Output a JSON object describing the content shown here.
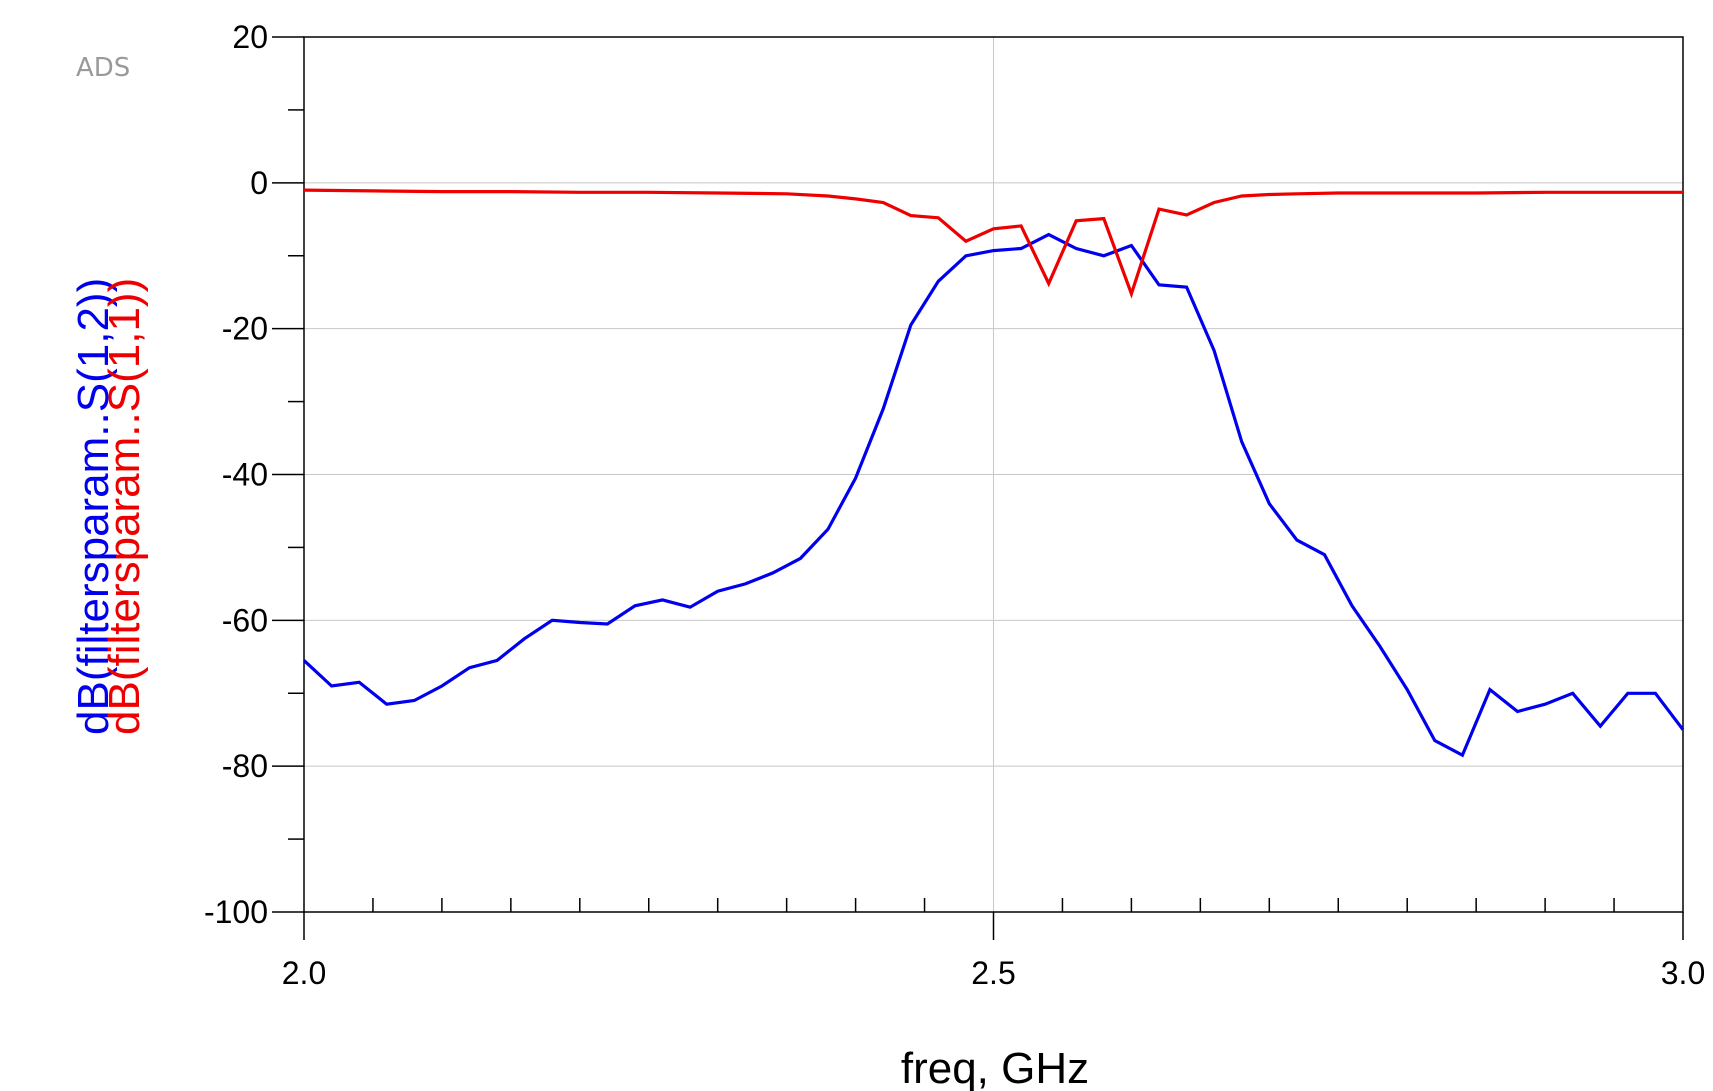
{
  "watermark": "ADS",
  "chart_data": {
    "type": "line",
    "title": "",
    "xlabel": "freq, GHz",
    "ylabel_series": [
      "dB(filtersparam..S(1,2))",
      "dB(filtersparam..S(1,1))"
    ],
    "xlim": [
      2.0,
      3.0
    ],
    "ylim": [
      -100,
      20
    ],
    "x_tick_labels": [
      "2.0",
      "2.5",
      "3.0"
    ],
    "x_tick_values": [
      2.0,
      2.5,
      3.0
    ],
    "y_tick_labels": [
      "20",
      "0",
      "-20",
      "-40",
      "-60",
      "-80",
      "-100"
    ],
    "y_tick_values": [
      20,
      0,
      -20,
      -40,
      -60,
      -80,
      -100
    ],
    "grid": true,
    "legend": "none",
    "series": [
      {
        "name": "dB(filtersparam..S(1,2))",
        "color": "#0000ee",
        "x": [
          2.0,
          2.02,
          2.04,
          2.06,
          2.08,
          2.1,
          2.12,
          2.14,
          2.16,
          2.18,
          2.2,
          2.22,
          2.24,
          2.26,
          2.28,
          2.3,
          2.32,
          2.34,
          2.36,
          2.38,
          2.4,
          2.42,
          2.44,
          2.46,
          2.48,
          2.5,
          2.52,
          2.54,
          2.56,
          2.58,
          2.6,
          2.62,
          2.64,
          2.66,
          2.68,
          2.7,
          2.72,
          2.74,
          2.76,
          2.78,
          2.8,
          2.82,
          2.84,
          2.86,
          2.88,
          2.9,
          2.92,
          2.94,
          2.96,
          2.98,
          3.0
        ],
        "y": [
          -65.5,
          -69,
          -68.5,
          -71.5,
          -71,
          -69,
          -66.5,
          -65.5,
          -62.5,
          -60,
          -60.3,
          -60.5,
          -58,
          -57.2,
          -58.2,
          -56,
          -55,
          -53.5,
          -51.5,
          -47.5,
          -40.5,
          -31,
          -19.5,
          -13.5,
          -10,
          -9.3,
          -9,
          -7.1,
          -9,
          -10,
          -8.6,
          -14,
          -14.3,
          -23,
          -35.5,
          -44,
          -49,
          -51,
          -58,
          -63.5,
          -69.5,
          -76.5,
          -78.5,
          -69.5,
          -72.5,
          -71.5,
          -70,
          -74.5,
          -70,
          -70,
          -75
        ]
      },
      {
        "name": "dB(filtersparam..S(1,1))",
        "color": "#ee0000",
        "x": [
          2.0,
          2.05,
          2.1,
          2.15,
          2.2,
          2.25,
          2.3,
          2.35,
          2.38,
          2.4,
          2.42,
          2.44,
          2.46,
          2.48,
          2.5,
          2.52,
          2.54,
          2.56,
          2.58,
          2.6,
          2.62,
          2.64,
          2.66,
          2.68,
          2.7,
          2.72,
          2.75,
          2.8,
          2.85,
          2.9,
          2.95,
          3.0
        ],
        "y": [
          -1,
          -1.1,
          -1.2,
          -1.2,
          -1.3,
          -1.3,
          -1.4,
          -1.5,
          -1.8,
          -2.2,
          -2.7,
          -4.5,
          -4.8,
          -8,
          -6.3,
          -5.9,
          -13.8,
          -5.2,
          -4.9,
          -15.2,
          -3.6,
          -4.4,
          -2.7,
          -1.8,
          -1.6,
          -1.5,
          -1.4,
          -1.4,
          -1.4,
          -1.3,
          -1.3,
          -1.3
        ]
      }
    ]
  }
}
